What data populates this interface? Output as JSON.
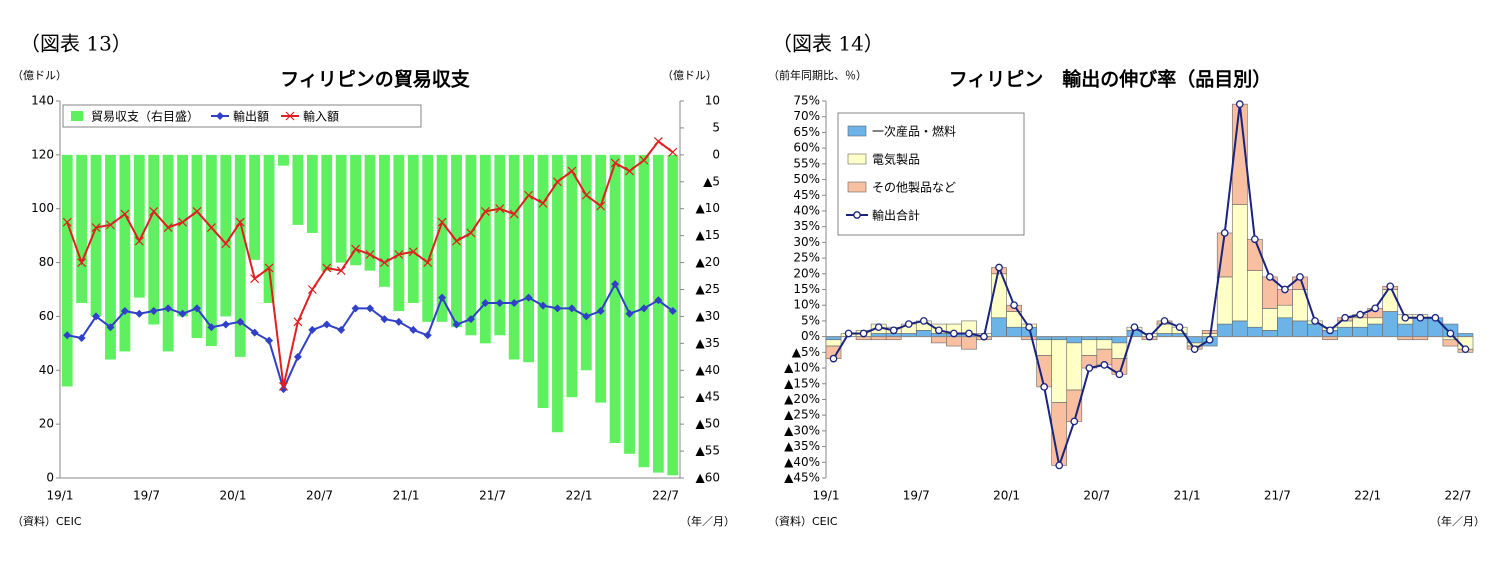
{
  "chart_data": [
    {
      "type": "combo",
      "figure_label": "（図表 13）",
      "title": "フィリピンの貿易収支",
      "y_label": "（億ドル）",
      "y2_label": "（億ドル）",
      "source": "（資料）CEIC",
      "x_label": "（年／月）",
      "categories": [
        "19/1",
        null,
        null,
        null,
        null,
        null,
        "19/7",
        null,
        null,
        null,
        null,
        null,
        "20/1",
        null,
        null,
        null,
        null,
        null,
        "20/7",
        null,
        null,
        null,
        null,
        null,
        "21/1",
        null,
        null,
        null,
        null,
        null,
        "21/7",
        null,
        null,
        null,
        null,
        null,
        "22/1",
        null,
        null,
        null,
        null,
        null,
        "22/7"
      ],
      "ylim": [
        0,
        140
      ],
      "yticks": [
        0,
        20,
        40,
        60,
        80,
        100,
        120,
        140
      ],
      "y2lim": [
        -60,
        10
      ],
      "y2ticks": [
        10,
        5,
        0,
        {
          "value": -5,
          "label": "▲5"
        },
        {
          "value": -10,
          "label": "▲10"
        },
        {
          "value": -15,
          "label": "▲15"
        },
        {
          "value": -20,
          "label": "▲20"
        },
        {
          "value": -25,
          "label": "▲25"
        },
        {
          "value": -30,
          "label": "▲30"
        },
        {
          "value": -35,
          "label": "▲35"
        },
        {
          "value": -40,
          "label": "▲40"
        },
        {
          "value": -45,
          "label": "▲45"
        },
        {
          "value": -50,
          "label": "▲50"
        },
        {
          "value": -55,
          "label": "▲55"
        },
        {
          "value": -60,
          "label": "▲60"
        }
      ],
      "legend": "upper left",
      "stacked": false,
      "series": [
        {
          "name": "貿易収支（右目盛）",
          "kind": "bar",
          "axis": "y2",
          "color": "#5ef05e",
          "values": [
            -43,
            -27.5,
            -30,
            -38,
            -36.5,
            -26.5,
            -31.5,
            -36.5,
            -30,
            -34,
            -35.5,
            -30,
            -37.5,
            -19.5,
            -27.5,
            -2,
            -13,
            -14.5,
            -21.5,
            -20,
            -20.5,
            -21.5,
            -24.5,
            -29,
            -27.5,
            -31,
            -31,
            -32,
            -33.5,
            -35,
            -33.5,
            -38,
            -38.5,
            -47,
            -51.5,
            -45,
            -40,
            -46,
            -53.5,
            -55.5,
            -58,
            -59,
            -59.5
          ]
        },
        {
          "name": "輸出額",
          "kind": "line",
          "marker": "diamond",
          "color": "#3040c8",
          "values": [
            53,
            52,
            60,
            56,
            62,
            61,
            62,
            63,
            61,
            63,
            56,
            57,
            58,
            54,
            51,
            33,
            45,
            55,
            57,
            55,
            63,
            63,
            59,
            58,
            55,
            53,
            67,
            57,
            59,
            65,
            65,
            65,
            67,
            64,
            63,
            63,
            60,
            62,
            72,
            61,
            63,
            66,
            62
          ]
        },
        {
          "name": "輸入額",
          "kind": "line",
          "marker": "x",
          "color": "#e02020",
          "values": [
            95,
            80,
            93,
            94,
            98,
            88,
            99,
            93,
            95,
            99,
            93,
            87,
            95,
            74,
            78,
            34,
            58,
            70,
            78,
            77,
            85,
            83,
            80,
            83,
            84,
            80,
            95,
            88,
            91,
            99,
            100,
            98,
            105,
            102,
            110,
            114,
            105,
            101,
            117,
            114,
            118,
            125,
            121
          ]
        }
      ]
    },
    {
      "type": "combo",
      "figure_label": "（図表 14）",
      "title": "フィリピン　輸出の伸び率（品目別）",
      "y_label": "（前年同期比、％）",
      "source": "（資料）CEIC",
      "x_label": "（年／月）",
      "categories": [
        "19/1",
        null,
        null,
        null,
        null,
        null,
        "19/7",
        null,
        null,
        null,
        null,
        null,
        "20/1",
        null,
        null,
        null,
        null,
        null,
        "20/7",
        null,
        null,
        null,
        null,
        null,
        "21/1",
        null,
        null,
        null,
        null,
        null,
        "21/7",
        null,
        null,
        null,
        null,
        null,
        "22/1",
        null,
        null,
        null,
        null,
        null,
        "22/7"
      ],
      "ylim": [
        -45,
        75
      ],
      "yticks": [
        {
          "value": 75,
          "label": "75%"
        },
        {
          "value": 70,
          "label": "70%"
        },
        {
          "value": 65,
          "label": "65%"
        },
        {
          "value": 60,
          "label": "60%"
        },
        {
          "value": 55,
          "label": "55%"
        },
        {
          "value": 50,
          "label": "50%"
        },
        {
          "value": 45,
          "label": "45%"
        },
        {
          "value": 40,
          "label": "40%"
        },
        {
          "value": 35,
          "label": "35%"
        },
        {
          "value": 30,
          "label": "30%"
        },
        {
          "value": 25,
          "label": "25%"
        },
        {
          "value": 20,
          "label": "20%"
        },
        {
          "value": 15,
          "label": "15%"
        },
        {
          "value": 10,
          "label": "10%"
        },
        {
          "value": 5,
          "label": "5%"
        },
        {
          "value": 0,
          "label": "0%"
        },
        {
          "value": -5,
          "label": "▲5%"
        },
        {
          "value": -10,
          "label": "▲10%"
        },
        {
          "value": -15,
          "label": "▲15%"
        },
        {
          "value": -20,
          "label": "▲20%"
        },
        {
          "value": -25,
          "label": "▲25%"
        },
        {
          "value": -30,
          "label": "▲30%"
        },
        {
          "value": -35,
          "label": "▲35%"
        },
        {
          "value": -40,
          "label": "▲40%"
        },
        {
          "value": -45,
          "label": "▲45%"
        }
      ],
      "legend": "upper left",
      "stacked": true,
      "series": [
        {
          "name": "一次産品・燃料",
          "kind": "bar",
          "color": "#6cb4e8",
          "values": [
            -1,
            0,
            0,
            1,
            1,
            1,
            2,
            1,
            1,
            1,
            0,
            6,
            3,
            3,
            -1,
            -1,
            -2,
            -1,
            -1,
            -2,
            2,
            0,
            1,
            1,
            -2,
            -3,
            4,
            5,
            3,
            2,
            6,
            5,
            4,
            2,
            3,
            3,
            4,
            8,
            4,
            6,
            6,
            4,
            1
          ]
        },
        {
          "name": "電気製品",
          "kind": "bar",
          "color": "#ffffc8",
          "values": [
            -2,
            1,
            2,
            3,
            2,
            3,
            3,
            3,
            3,
            4,
            1,
            14,
            5,
            1,
            -5,
            -20,
            -15,
            -5,
            -3,
            -5,
            1,
            1,
            3,
            2,
            -1,
            1,
            15,
            37,
            18,
            7,
            4,
            10,
            1,
            1,
            2,
            3,
            2,
            7,
            3,
            1,
            0,
            -1,
            -4
          ]
        },
        {
          "name": "その他製品など",
          "kind": "bar",
          "color": "#f8c0a0",
          "values": [
            -4,
            0,
            -1,
            -1,
            -1,
            0,
            0,
            -2,
            -3,
            -4,
            -1,
            2,
            2,
            -1,
            -10,
            -20,
            -10,
            -4,
            -5,
            -5,
            0,
            -1,
            1,
            0,
            -1,
            1,
            14,
            32,
            10,
            10,
            5,
            4,
            0,
            -1,
            1,
            1,
            3,
            1,
            -1,
            -1,
            0,
            -2,
            -1
          ]
        },
        {
          "name": "輸出合計",
          "kind": "line",
          "marker": "circle",
          "color": "#1a237e",
          "values": [
            -7,
            1,
            1,
            3,
            2,
            4,
            5,
            2,
            1,
            1,
            0,
            22,
            10,
            3,
            -16,
            -41,
            -27,
            -10,
            -9,
            -12,
            3,
            0,
            5,
            3,
            -4,
            -1,
            33,
            74,
            31,
            19,
            15,
            19,
            5,
            2,
            6,
            7,
            9,
            16,
            6,
            6,
            6,
            1,
            -4
          ]
        }
      ]
    }
  ]
}
